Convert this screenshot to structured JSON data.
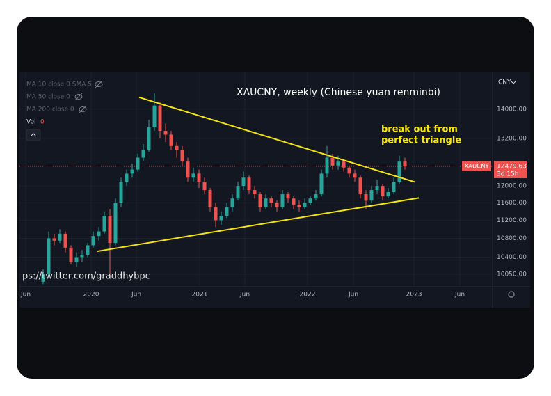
{
  "chart_data": {
    "type": "candlestick",
    "title": "XAUCNY, weekly (Chinese yuan renminbi)",
    "annotation": [
      "break out from",
      "perfect triangle"
    ],
    "watermark": "ps://twitter.com/graddhybpc",
    "indicators": [
      "MA 10 close 0 SMA 5",
      "MA 50 close 0",
      "MA 200 close 0"
    ],
    "volume_label": "Vol",
    "volume_value": 0,
    "currency": "CNY",
    "symbol": "XAUCNY",
    "last_price": 12479.63,
    "countdown": "3d 15h",
    "up_color": "#26a69a",
    "down_color": "#ef5350",
    "log_scale": true,
    "grid": true,
    "open": [
      9900,
      10050,
      10800,
      10750,
      10900,
      10600,
      10300,
      10400,
      10450,
      10650,
      10850,
      10950,
      11300,
      10700,
      11600,
      12100,
      12300,
      12400,
      12700,
      12900,
      13500,
      14100,
      13400,
      13300,
      13000,
      12900,
      12600,
      12200,
      12300,
      12100,
      11900,
      11500,
      11200,
      11300,
      11500,
      11700,
      12000,
      12200,
      11900,
      11800,
      11500,
      11700,
      11600,
      11500,
      11800,
      11700,
      11550,
      11500,
      11600,
      11700,
      11800,
      12300,
      12700,
      12500,
      12600,
      12450,
      12300,
      12200,
      11800,
      11650,
      11900,
      12000,
      11750,
      11850,
      12100,
      12600
    ],
    "high": [
      10150,
      10950,
      10900,
      11000,
      10950,
      10650,
      10500,
      10550,
      10700,
      10950,
      11050,
      11400,
      11450,
      11700,
      12200,
      12400,
      12550,
      12800,
      13050,
      13700,
      14450,
      14200,
      13600,
      13400,
      13100,
      13000,
      12700,
      12450,
      12400,
      12200,
      11950,
      11600,
      11400,
      11600,
      11800,
      12100,
      12350,
      12250,
      12000,
      11850,
      11800,
      11750,
      11650,
      11900,
      11850,
      11750,
      11650,
      11700,
      11750,
      11900,
      12400,
      13000,
      12800,
      12750,
      12650,
      12500,
      12400,
      12250,
      11900,
      12000,
      12150,
      12050,
      11950,
      12200,
      12750,
      12700
    ],
    "low": [
      9850,
      10000,
      10650,
      10700,
      10500,
      10250,
      10200,
      10300,
      10400,
      10600,
      10750,
      10900,
      10000,
      10650,
      11500,
      12000,
      12200,
      12350,
      12600,
      12850,
      13400,
      13200,
      13100,
      12900,
      12700,
      12500,
      12100,
      12100,
      11950,
      11800,
      11400,
      11050,
      11100,
      11250,
      11400,
      11650,
      11900,
      11800,
      11700,
      11400,
      11450,
      11500,
      11400,
      11450,
      11600,
      11450,
      11400,
      11450,
      11550,
      11650,
      11750,
      12200,
      12400,
      12400,
      12350,
      12200,
      12100,
      11700,
      11450,
      11600,
      11800,
      11650,
      11700,
      11800,
      12050,
      12400
    ],
    "close": [
      10050,
      10800,
      10750,
      10900,
      10600,
      10300,
      10400,
      10450,
      10650,
      10850,
      10950,
      11300,
      10700,
      11600,
      12100,
      12300,
      12400,
      12700,
      12900,
      13500,
      14100,
      13400,
      13300,
      13000,
      12900,
      12600,
      12200,
      12300,
      12100,
      11900,
      11500,
      11200,
      11300,
      11500,
      11700,
      12000,
      12200,
      11900,
      11800,
      11500,
      11700,
      11600,
      11500,
      11800,
      11700,
      11550,
      11500,
      11600,
      11700,
      11800,
      12300,
      12700,
      12500,
      12600,
      12450,
      12300,
      12200,
      11800,
      11650,
      11900,
      12000,
      11750,
      11850,
      12100,
      12600,
      12480
    ],
    "trendlines": [
      {
        "color": "#f5e50a",
        "x": [
          17.25,
          66.75
        ],
        "y": [
          14336,
          12095
        ]
      },
      {
        "color": "#f5e50a",
        "x": [
          9.75,
          67.5
        ],
        "y": [
          10523,
          11714
        ]
      }
    ],
    "xlim": [
      -4,
      80.75
    ],
    "xticks": [
      {
        "value": -3.125,
        "label": "Jun"
      },
      {
        "value": 8.625,
        "label": "2020"
      },
      {
        "value": 16.75,
        "label": "Jun"
      },
      {
        "value": 28.125,
        "label": "2021"
      },
      {
        "value": 36.25,
        "label": "Jun"
      },
      {
        "value": 47.5,
        "label": "2022"
      },
      {
        "value": 55.75,
        "label": "Jun"
      },
      {
        "value": 66.625,
        "label": "2023"
      },
      {
        "value": 74.875,
        "label": "Jun"
      }
    ],
    "ylim": [
      9800,
      15050
    ],
    "yticks": [
      {
        "value": 14000,
        "label": "14000.00"
      },
      {
        "value": 13200,
        "label": "13200.00"
      },
      {
        "value": 12000,
        "label": "12000.00"
      },
      {
        "value": 11600,
        "label": "11600.00"
      },
      {
        "value": 11200,
        "label": "11200.00"
      },
      {
        "value": 10800,
        "label": "10800.00"
      },
      {
        "value": 10400,
        "label": "10400.00"
      },
      {
        "value": 10050,
        "label": "10050.00"
      }
    ]
  }
}
